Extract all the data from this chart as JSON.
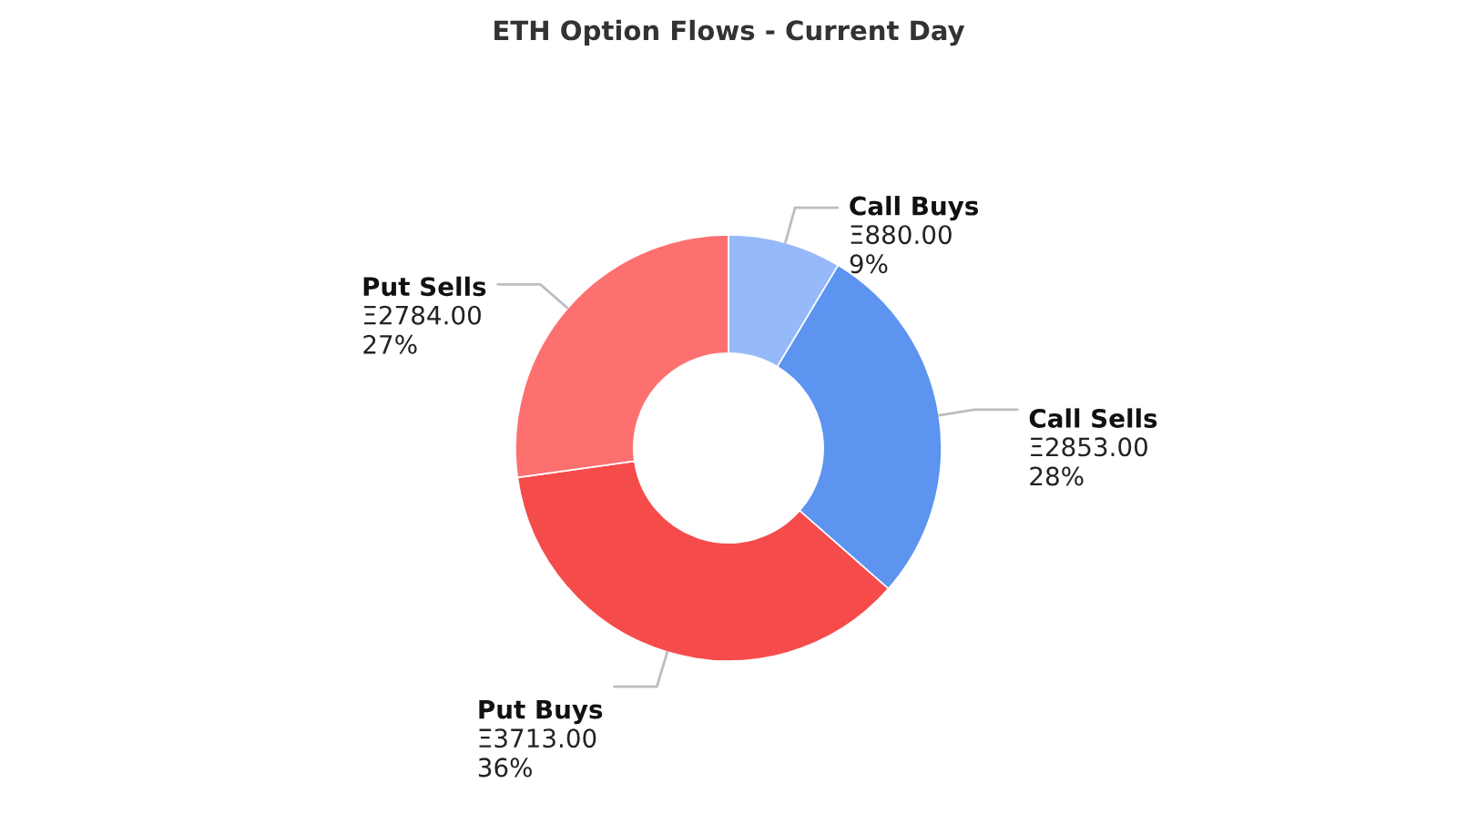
{
  "chart_data": {
    "type": "donut",
    "title": "ETH Option Flows - Current Day",
    "categories": [
      "Call Buys",
      "Call Sells",
      "Put Buys",
      "Put Sells"
    ],
    "values": [
      880,
      2853,
      3713,
      2784
    ],
    "colors": [
      "#96b9fa",
      "#5c94f0",
      "#f64b4b",
      "#fd7070"
    ],
    "value_labels": [
      "Ξ880.00\n9%",
      "Ξ2853.00\n28%",
      "Ξ3713.00\n36%",
      "Ξ2784.00\n27%"
    ]
  }
}
